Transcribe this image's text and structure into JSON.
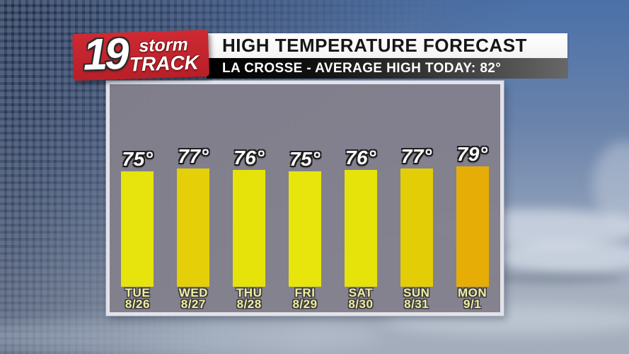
{
  "logo": {
    "number": "19",
    "word1": "storm",
    "word2": "TRACK"
  },
  "header": {
    "title": "HIGH TEMPERATURE FORECAST",
    "subtitle": "LA CROSSE - AVERAGE HIGH TODAY: 82°"
  },
  "location": "LA CROSSE",
  "average_high_today": "82°",
  "forecast": {
    "days": [
      {
        "day": "TUE",
        "date": "8/26",
        "value": 75,
        "label": "75°",
        "color": "#e6e30d"
      },
      {
        "day": "WED",
        "date": "8/27",
        "value": 77,
        "label": "77°",
        "color": "#e4cf08"
      },
      {
        "day": "THU",
        "date": "8/28",
        "value": 76,
        "label": "76°",
        "color": "#e6e30b"
      },
      {
        "day": "FRI",
        "date": "8/29",
        "value": 75,
        "label": "75°",
        "color": "#e8e50d"
      },
      {
        "day": "SAT",
        "date": "8/30",
        "value": 76,
        "label": "76°",
        "color": "#e6e30b"
      },
      {
        "day": "SUN",
        "date": "8/31",
        "value": 77,
        "label": "77°",
        "color": "#e2cd06"
      },
      {
        "day": "MON",
        "date": "9/1",
        "value": 79,
        "label": "79°",
        "color": "#e7ad07"
      }
    ]
  },
  "chart_data": {
    "type": "bar",
    "title": "HIGH TEMPERATURE FORECAST",
    "subtitle": "LA CROSSE - AVERAGE HIGH TODAY: 82°",
    "categories": [
      "TUE 8/26",
      "WED 8/27",
      "THU 8/28",
      "FRI 8/29",
      "SAT 8/30",
      "SUN 8/31",
      "MON 9/1"
    ],
    "values": [
      75,
      77,
      76,
      75,
      76,
      77,
      79
    ],
    "data_labels": [
      "75°",
      "77°",
      "76°",
      "75°",
      "76°",
      "77°",
      "79°"
    ],
    "unit": "°F",
    "bar_colors": [
      "#e6e30d",
      "#e4cf08",
      "#e6e30b",
      "#e8e50d",
      "#e6e30b",
      "#e2cd06",
      "#e7ad07"
    ],
    "xlabel": "",
    "ylabel": "",
    "grid": false,
    "legend": "none",
    "annotation": "bars drawn on semi-transparent gray panel over sky background"
  },
  "colors": {
    "brand_red": "#c1232d",
    "title_bar_bg": "#ffffff",
    "subtitle_bar_gradient": [
      "#000000",
      "#686868"
    ],
    "panel_gray": "#83808c",
    "panel_border": "#e3e2e8",
    "yellow_bar": "#e6e30d",
    "gold_bar": "#e2cd06",
    "orange_bar": "#e7ad07",
    "day_label_yellow": "#f1eda4"
  }
}
